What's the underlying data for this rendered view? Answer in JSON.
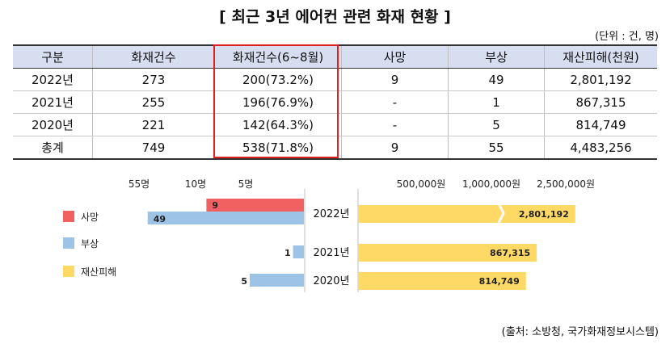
{
  "title": "[ 최근 3년 에어컨 관련 화재 현황 ]",
  "unit_note": "(단위 : 건, 명)",
  "table": {
    "headers": [
      "구분",
      "화재건수",
      "화재건수(6~8월)",
      "사망",
      "부상",
      "재산피해(천원)"
    ],
    "rows": [
      [
        "2022년",
        "273",
        "200(73.2%)",
        "9",
        "49",
        "2,801,192"
      ],
      [
        "2021년",
        "255",
        "196(76.9%)",
        "-",
        "1",
        "867,315"
      ],
      [
        "2020년",
        "221",
        "142(64.3%)",
        "-",
        "5",
        "814,749"
      ],
      [
        "총계",
        "749",
        "538(71.8%)",
        "9",
        "55",
        "4,483,256"
      ]
    ]
  },
  "source": "(출처: 소방청, 국가화재정보시스템)",
  "chart_data": {
    "type": "bar",
    "categories": [
      "2022년",
      "2021년",
      "2020년"
    ],
    "series": [
      {
        "name": "사망",
        "values": [
          9,
          0,
          0
        ],
        "labels": [
          "9",
          "",
          ""
        ],
        "color": "#f26161"
      },
      {
        "name": "부상",
        "values": [
          49,
          1,
          5
        ],
        "labels": [
          "49",
          "1",
          "5"
        ],
        "color": "#9dc3e6"
      },
      {
        "name": "재산피해",
        "values": [
          2801192,
          867315,
          814749
        ],
        "labels": [
          "2,801,192",
          "867,315",
          "814,749"
        ],
        "color": "#ffd966"
      }
    ],
    "left_axis_ticks": [
      "55명",
      "10명",
      "5명"
    ],
    "right_axis_ticks": [
      "500,000원",
      "1,000,000원",
      "2,500,000원"
    ],
    "right_axis_broken": true
  }
}
